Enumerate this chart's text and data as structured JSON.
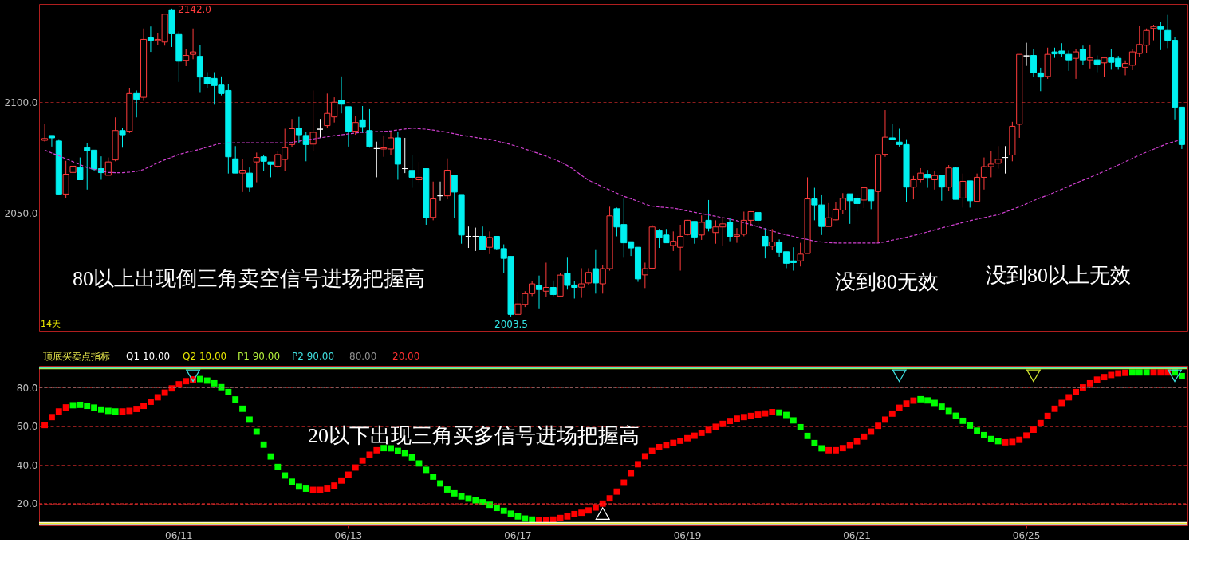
{
  "chart_data": [
    {
      "type": "candlestick",
      "tick_labels": "y",
      "grid": "y",
      "ohlc": [
        [
          2082.9,
          2090.1,
          2082.3,
          2083.7
        ],
        [
          2085.1,
          2085.1,
          2080.1,
          2084.0
        ],
        [
          2082.6,
          2083.4,
          2058.8,
          2058.8
        ],
        [
          2058.8,
          2073.7,
          2056.9,
          2067.7
        ],
        [
          2068.5,
          2073.2,
          2063.0,
          2071.3
        ],
        [
          2070.7,
          2075.2,
          2065.2,
          2065.2
        ],
        [
          2079.6,
          2081.8,
          2060.8,
          2078.1
        ],
        [
          2078.5,
          2078.5,
          2069.1,
          2070.0
        ],
        [
          2070.2,
          2075.7,
          2065.2,
          2068.4
        ],
        [
          2067.2,
          2075.2,
          2067.2,
          2073.2
        ],
        [
          2074.1,
          2093.2,
          2073.5,
          2087.3
        ],
        [
          2087.3,
          2088.4,
          2079.6,
          2085.4
        ],
        [
          2087.0,
          2106.3,
          2086.2,
          2103.9
        ],
        [
          2103.9,
          2105.3,
          2093.2,
          2101.3
        ],
        [
          2102.2,
          2133.1,
          2100.6,
          2128.2
        ],
        [
          2128.9,
          2134.0,
          2122.6,
          2127.8
        ],
        [
          2127.7,
          2131.1,
          2125.6,
          2128.2
        ],
        [
          2127.0,
          2139.5,
          2125.4,
          2139.5
        ],
        [
          2141.5,
          2142.0,
          2124.8,
          2130.7
        ],
        [
          2130.4,
          2131.8,
          2109.1,
          2118.4
        ],
        [
          2118.8,
          2124.0,
          2116.2,
          2121.0
        ],
        [
          2121.5,
          2133.1,
          2119.3,
          2122.6
        ],
        [
          2120.6,
          2125.6,
          2104.2,
          2111.3
        ],
        [
          2111.3,
          2113.5,
          2106.3,
          2108.2
        ],
        [
          2110.7,
          2113.5,
          2098.9,
          2107.5
        ],
        [
          2107.7,
          2111.6,
          2103.1,
          2103.9
        ],
        [
          2105.3,
          2108.3,
          2068.0,
          2075.5
        ],
        [
          2074.6,
          2080.3,
          2068.2,
          2068.2
        ],
        [
          2068.2,
          2074.6,
          2059.7,
          2069.5
        ],
        [
          2068.2,
          2070.7,
          2059.7,
          2061.8
        ],
        [
          2073.2,
          2077.4,
          2064.1,
          2075.2
        ],
        [
          2075.5,
          2076.5,
          2069.1,
          2073.5
        ],
        [
          2073.2,
          2073.2,
          2066.3,
          2072.1
        ],
        [
          2071.3,
          2077.9,
          2070.4,
          2076.5
        ],
        [
          2074.3,
          2088.1,
          2069.1,
          2079.6
        ],
        [
          2081.0,
          2092.5,
          2079.9,
          2088.1
        ],
        [
          2088.4,
          2093.4,
          2081.8,
          2085.4
        ],
        [
          2085.1,
          2086.8,
          2073.5,
          2081.0
        ],
        [
          2081.2,
          2105.3,
          2078.1,
          2086.5
        ],
        [
          2087.9,
          2092.5,
          2084.0,
          2087.9
        ],
        [
          2089.5,
          2103.9,
          2088.4,
          2095.0
        ],
        [
          2093.4,
          2102.2,
          2090.9,
          2100.0
        ],
        [
          2100.9,
          2111.6,
          2095.0,
          2099.1
        ],
        [
          2098.0,
          2098.0,
          2080.1,
          2087.0
        ],
        [
          2087.0,
          2093.9,
          2085.4,
          2090.9
        ],
        [
          2092.1,
          2098.3,
          2086.2,
          2089.0
        ],
        [
          2087.3,
          2096.9,
          2079.6,
          2080.1
        ],
        [
          2079.2,
          2082.3,
          2066.3,
          2079.2
        ],
        [
          2079.0,
          2085.1,
          2075.5,
          2079.5
        ],
        [
          2079.0,
          2087.0,
          2076.3,
          2084.0
        ],
        [
          2084.0,
          2086.5,
          2065.2,
          2072.2
        ],
        [
          2070.2,
          2084.0,
          2068.2,
          2070.2
        ],
        [
          2069.4,
          2076.3,
          2061.6,
          2066.3
        ],
        [
          2065.2,
          2073.2,
          2063.6,
          2066.3
        ],
        [
          2070.2,
          2070.2,
          2045.0,
          2048.1
        ],
        [
          2048.3,
          2064.4,
          2047.0,
          2056.6
        ],
        [
          2058.0,
          2064.4,
          2055.8,
          2058.0
        ],
        [
          2058.0,
          2074.8,
          2056.4,
          2069.5
        ],
        [
          2067.2,
          2067.2,
          2048.1,
          2059.7
        ],
        [
          2058.6,
          2058.6,
          2036.5,
          2040.4
        ],
        [
          2039.8,
          2044.2,
          2034.6,
          2039.8
        ],
        [
          2039.8,
          2043.7,
          2033.2,
          2039.8
        ],
        [
          2039.8,
          2044.2,
          2033.8,
          2033.8
        ],
        [
          2034.9,
          2042.0,
          2031.8,
          2039.3
        ],
        [
          2039.8,
          2039.8,
          2033.8,
          2034.3
        ],
        [
          2034.3,
          2036.2,
          2023.3,
          2029.9
        ],
        [
          2030.8,
          2030.8,
          2003.5,
          2004.8
        ],
        [
          2004.8,
          2015.0,
          2004.8,
          2009.5
        ],
        [
          2009.3,
          2015.2,
          2008.1,
          2014.1
        ],
        [
          2014.1,
          2019.6,
          2013.0,
          2018.5
        ],
        [
          2017.8,
          2022.2,
          2007.5,
          2015.9
        ],
        [
          2015.2,
          2028.0,
          2012.8,
          2016.9
        ],
        [
          2016.9,
          2020.0,
          2013.0,
          2013.7
        ],
        [
          2013.0,
          2023.3,
          2013.0,
          2022.4
        ],
        [
          2023.3,
          2030.2,
          2015.9,
          2017.8
        ],
        [
          2018.0,
          2019.6,
          2011.9,
          2016.9
        ],
        [
          2017.0,
          2025.5,
          2012.2,
          2018.5
        ],
        [
          2018.9,
          2025.5,
          2017.8,
          2023.6
        ],
        [
          2025.3,
          2034.0,
          2014.1,
          2018.9
        ],
        [
          2018.5,
          2027.1,
          2014.1,
          2025.3
        ],
        [
          2025.3,
          2053.1,
          2024.4,
          2049.0
        ],
        [
          2052.2,
          2052.7,
          2039.8,
          2044.0
        ],
        [
          2045.1,
          2056.7,
          2030.2,
          2036.9
        ],
        [
          2037.4,
          2037.4,
          2031.0,
          2034.6
        ],
        [
          2034.9,
          2034.9,
          2019.4,
          2020.7
        ],
        [
          2022.5,
          2028.0,
          2016.6,
          2025.3
        ],
        [
          2025.5,
          2045.0,
          2025.5,
          2044.0
        ],
        [
          2042.4,
          2043.1,
          2034.6,
          2039.3
        ],
        [
          2040.4,
          2043.1,
          2036.9,
          2036.9
        ],
        [
          2035.7,
          2042.0,
          2033.2,
          2037.6
        ],
        [
          2034.9,
          2045.0,
          2024.4,
          2039.8
        ],
        [
          2040.6,
          2047.2,
          2040.2,
          2047.0
        ],
        [
          2046.5,
          2046.5,
          2036.5,
          2039.5
        ],
        [
          2040.4,
          2049.2,
          2038.2,
          2046.1
        ],
        [
          2047.0,
          2056.1,
          2042.0,
          2043.5
        ],
        [
          2041.5,
          2047.0,
          2036.5,
          2044.0
        ],
        [
          2044.0,
          2048.3,
          2035.7,
          2045.4
        ],
        [
          2046.1,
          2048.1,
          2037.6,
          2039.8
        ],
        [
          2039.8,
          2043.5,
          2036.9,
          2040.4
        ],
        [
          2040.7,
          2050.9,
          2039.8,
          2047.0
        ],
        [
          2047.0,
          2051.1,
          2044.6,
          2050.9
        ],
        [
          2050.5,
          2050.5,
          2044.8,
          2047.0
        ],
        [
          2039.8,
          2043.5,
          2029.9,
          2035.4
        ],
        [
          2035.4,
          2043.1,
          2033.8,
          2037.3
        ],
        [
          2037.3,
          2038.4,
          2030.7,
          2032.7
        ],
        [
          2032.9,
          2032.9,
          2025.5,
          2027.7
        ],
        [
          2028.8,
          2034.9,
          2024.4,
          2028.0
        ],
        [
          2028.8,
          2036.9,
          2026.3,
          2031.8
        ],
        [
          2032.1,
          2066.3,
          2032.1,
          2056.6
        ],
        [
          2056.6,
          2061.6,
          2047.0,
          2053.9
        ],
        [
          2053.9,
          2058.6,
          2040.4,
          2044.2
        ],
        [
          2044.2,
          2054.7,
          2044.2,
          2048.1
        ],
        [
          2047.2,
          2055.0,
          2047.0,
          2052.0
        ],
        [
          2051.6,
          2059.2,
          2049.8,
          2056.9
        ],
        [
          2058.9,
          2058.9,
          2045.4,
          2055.8
        ],
        [
          2056.9,
          2058.6,
          2050.9,
          2054.5
        ],
        [
          2056.1,
          2061.6,
          2052.5,
          2061.6
        ],
        [
          2060.8,
          2060.8,
          2052.0,
          2055.8
        ],
        [
          2059.9,
          2076.5,
          2036.8,
          2076.5
        ],
        [
          2076.6,
          2096.5,
          2075.5,
          2084.3
        ],
        [
          2084.0,
          2090.1,
          2083.1,
          2083.1
        ],
        [
          2082.1,
          2088.1,
          2080.1,
          2081.0
        ],
        [
          2081.0,
          2083.4,
          2055.0,
          2061.9
        ],
        [
          2061.9,
          2066.9,
          2056.4,
          2065.2
        ],
        [
          2065.2,
          2070.4,
          2064.1,
          2068.2
        ],
        [
          2067.7,
          2069.6,
          2061.6,
          2066.2
        ],
        [
          2065.2,
          2069.3,
          2060.8,
          2067.1
        ],
        [
          2067.2,
          2067.2,
          2055.8,
          2061.9
        ],
        [
          2061.9,
          2071.8,
          2060.3,
          2070.5
        ],
        [
          2070.5,
          2071.1,
          2056.4,
          2056.4
        ],
        [
          2057.0,
          2068.0,
          2052.7,
          2064.5
        ],
        [
          2064.7,
          2064.7,
          2052.7,
          2055.8
        ],
        [
          2055.5,
          2068.0,
          2055.0,
          2066.3
        ],
        [
          2066.3,
          2075.2,
          2060.8,
          2071.1
        ],
        [
          2071.1,
          2078.1,
          2066.3,
          2072.2
        ],
        [
          2072.6,
          2080.3,
          2070.2,
          2074.4
        ],
        [
          2075.2,
          2080.3,
          2068.0,
          2075.2
        ],
        [
          2076.3,
          2091.2,
          2073.5,
          2089.2
        ],
        [
          2090.1,
          2121.5,
          2084.0,
          2121.5
        ],
        [
          2120.8,
          2126.7,
          2116.3,
          2120.8
        ],
        [
          2121.0,
          2123.7,
          2111.3,
          2113.2
        ],
        [
          2113.2,
          2115.5,
          2105.0,
          2111.3
        ],
        [
          2111.6,
          2124.5,
          2110.5,
          2121.5
        ],
        [
          2122.6,
          2124.5,
          2119.9,
          2121.7
        ],
        [
          2123.0,
          2126.5,
          2120.4,
          2121.7
        ],
        [
          2121.5,
          2123.2,
          2114.1,
          2119.0
        ],
        [
          2119.7,
          2123.7,
          2110.5,
          2122.6
        ],
        [
          2123.7,
          2125.4,
          2116.6,
          2119.0
        ],
        [
          2119.0,
          2125.9,
          2115.2,
          2119.9
        ],
        [
          2119.0,
          2121.0,
          2113.5,
          2117.1
        ],
        [
          2117.7,
          2119.9,
          2111.3,
          2119.9
        ],
        [
          2119.9,
          2123.7,
          2114.6,
          2117.9
        ],
        [
          2119.7,
          2120.8,
          2114.6,
          2116.0
        ],
        [
          2115.7,
          2118.8,
          2112.1,
          2117.4
        ],
        [
          2116.6,
          2123.7,
          2114.4,
          2122.6
        ],
        [
          2121.9,
          2134.2,
          2120.4,
          2125.9
        ],
        [
          2125.6,
          2133.1,
          2122.1,
          2132.2
        ],
        [
          2133.1,
          2134.8,
          2127.8,
          2134.0
        ],
        [
          2134.0,
          2135.9,
          2123.4,
          2132.6
        ],
        [
          2132.2,
          2139.2,
          2124.3,
          2127.8
        ],
        [
          2127.8,
          2129.3,
          2092.3,
          2097.8
        ],
        [
          2097.8,
          2097.8,
          2079.0,
          2081.0
        ]
      ],
      "series": [
        {
          "type": "line",
          "color": "#d040d0",
          "line_style": "dashed",
          "values": [
            2078.5,
            2077.2,
            2076.0,
            2074.6,
            2073.3,
            2072.0,
            2070.7,
            2069.9,
            2069.2,
            2068.5,
            2068.4,
            2068.4,
            2068.6,
            2069.0,
            2069.8,
            2071.3,
            2072.9,
            2074.1,
            2075.3,
            2076.6,
            2077.4,
            2078.1,
            2078.9,
            2079.9,
            2080.8,
            2081.6,
            2081.7,
            2081.8,
            2081.8,
            2081.8,
            2081.8,
            2081.8,
            2081.8,
            2081.8,
            2081.7,
            2082.0,
            2082.5,
            2083.1,
            2083.5,
            2084.0,
            2084.5,
            2085.0,
            2085.4,
            2085.8,
            2086.2,
            2086.5,
            2086.6,
            2086.8,
            2086.9,
            2087.1,
            2087.6,
            2088.0,
            2088.4,
            2088.1,
            2087.9,
            2087.5,
            2087.0,
            2086.5,
            2085.9,
            2085.2,
            2084.7,
            2084.2,
            2083.7,
            2083.4,
            2082.6,
            2081.8,
            2081.0,
            2080.0,
            2079.0,
            2078.0,
            2076.9,
            2075.8,
            2074.6,
            2073.2,
            2071.6,
            2069.6,
            2067.2,
            2065.0,
            2063.5,
            2062.0,
            2060.6,
            2059.2,
            2057.8,
            2056.7,
            2055.5,
            2054.2,
            2053.4,
            2053.0,
            2052.7,
            2052.5,
            2051.9,
            2051.2,
            2050.6,
            2050.0,
            2049.4,
            2048.8,
            2048.2,
            2047.5,
            2046.8,
            2045.9,
            2045.1,
            2044.1,
            2043.1,
            2042.2,
            2041.3,
            2040.4,
            2039.8,
            2039.0,
            2038.4,
            2037.6,
            2037.3,
            2037.0,
            2036.8,
            2036.8,
            2036.8,
            2036.8,
            2036.8,
            2036.8,
            2036.8,
            2037.4,
            2038.1,
            2038.7,
            2039.4,
            2040.2,
            2040.9,
            2041.8,
            2042.7,
            2043.6,
            2044.4,
            2045.2,
            2046.0,
            2046.8,
            2047.5,
            2048.2,
            2048.9,
            2049.5,
            2050.7,
            2051.9,
            2053.1,
            2054.4,
            2055.8,
            2057.1,
            2058.3,
            2059.6,
            2060.9,
            2062.3,
            2063.7,
            2065.0,
            2066.3,
            2067.6,
            2069.0,
            2070.4,
            2071.8,
            2073.3,
            2074.8,
            2076.3,
            2077.6,
            2078.9,
            2080.2,
            2081.5,
            2082.4,
            2083.2
          ]
        }
      ],
      "ylim": [
        1997.4,
        2144.1
      ],
      "yticks": [
        {
          "value": 2050,
          "label": "2050.0"
        },
        {
          "value": 2100,
          "label": "2100.0"
        }
      ],
      "annotations": [
        "2142.0",
        "2003.5",
        "80以上出现倒三角卖空信号进场把握高",
        "没到80无效",
        "没到80以上无效",
        "14天"
      ]
    },
    {
      "type": "scatter",
      "grid": "y",
      "title": "顶底买卖点指标",
      "categories": [
        null,
        null,
        null,
        null,
        null,
        null,
        null,
        null,
        null,
        null,
        null,
        null,
        null,
        null,
        null,
        null,
        null,
        null,
        null,
        "06/11",
        null,
        null,
        null,
        null,
        null,
        null,
        null,
        null,
        null,
        null,
        null,
        null,
        null,
        null,
        null,
        null,
        null,
        null,
        null,
        null,
        null,
        null,
        null,
        "06/13",
        null,
        null,
        null,
        null,
        null,
        null,
        null,
        null,
        null,
        null,
        null,
        null,
        null,
        null,
        null,
        null,
        null,
        null,
        null,
        null,
        null,
        null,
        null,
        "06/17",
        null,
        null,
        null,
        null,
        null,
        null,
        null,
        null,
        null,
        null,
        null,
        null,
        null,
        null,
        null,
        null,
        null,
        null,
        null,
        null,
        null,
        null,
        null,
        "06/19",
        null,
        null,
        null,
        null,
        null,
        null,
        null,
        null,
        null,
        null,
        null,
        null,
        null,
        null,
        null,
        null,
        null,
        null,
        null,
        null,
        null,
        null,
        null,
        "06/21",
        null,
        null,
        null,
        null,
        null,
        null,
        null,
        null,
        null,
        null,
        null,
        null,
        null,
        null,
        null,
        null,
        null,
        null,
        null,
        null,
        null,
        null,
        null,
        "06/25",
        null,
        null,
        null,
        null,
        null,
        null,
        null,
        null,
        null,
        null,
        null,
        null,
        null,
        null,
        null,
        null,
        null,
        null,
        null,
        null,
        null,
        null
      ],
      "series": [
        {
          "marker": "square",
          "values": [
            60.6,
            64.7,
            67.6,
            69.7,
            70.8,
            71.0,
            70.5,
            69.6,
            68.6,
            67.9,
            67.6,
            67.6,
            67.9,
            68.9,
            70.5,
            72.6,
            74.9,
            77.3,
            79.5,
            81.6,
            83.2,
            84.1,
            84.3,
            83.5,
            82.1,
            80.1,
            77.6,
            73.8,
            69.0,
            63.4,
            57.2,
            50.5,
            44.4,
            39.0,
            34.6,
            31.4,
            28.9,
            27.8,
            27.2,
            27.2,
            27.8,
            29.4,
            32.0,
            35.0,
            38.7,
            42.3,
            45.3,
            47.6,
            48.7,
            48.6,
            47.3,
            46.1,
            43.9,
            40.8,
            37.5,
            34.0,
            30.5,
            27.4,
            25.4,
            23.8,
            22.7,
            21.8,
            20.8,
            19.5,
            17.9,
            16.4,
            14.9,
            13.5,
            12.4,
            11.9,
            11.6,
            11.6,
            11.9,
            12.7,
            13.5,
            14.7,
            15.4,
            16.6,
            18.1,
            20.1,
            22.8,
            26.3,
            30.9,
            35.8,
            40.4,
            44.5,
            47.3,
            49.2,
            50.3,
            51.4,
            52.5,
            53.8,
            55.1,
            56.6,
            58.1,
            59.7,
            61.2,
            62.7,
            63.9,
            64.7,
            65.3,
            66.0,
            66.6,
            67.3,
            67.0,
            65.8,
            63.0,
            59.5,
            55.0,
            51.3,
            48.6,
            47.6,
            47.6,
            48.7,
            50.2,
            52.2,
            54.6,
            57.2,
            60.2,
            63.4,
            66.5,
            69.5,
            71.7,
            73.2,
            73.9,
            73.3,
            72.0,
            70.1,
            67.9,
            65.4,
            62.8,
            60.3,
            57.7,
            55.4,
            53.4,
            52.3,
            51.7,
            51.9,
            53.0,
            55.2,
            58.2,
            61.6,
            65.3,
            69.0,
            72.0,
            74.9,
            77.6,
            80.0,
            82.1,
            84.0,
            85.3,
            86.4,
            87.2,
            87.5,
            87.7,
            87.7,
            87.7,
            87.7,
            87.7,
            87.7,
            87.7,
            85.8
          ],
          "colors": [
            "#ff0000",
            "#ff0000",
            "#ff0000",
            "#ff0000",
            "#00ff00",
            "#00ff00",
            "#00ff00",
            "#00ff00",
            "#00ff00",
            "#00ff00",
            "#00ff00",
            "#ff0000",
            "#ff0000",
            "#ff0000",
            "#ff0000",
            "#ff0000",
            "#ff0000",
            "#ff0000",
            "#ff0000",
            "#ff0000",
            "#ff0000",
            "#ff0000",
            "#00ff00",
            "#00ff00",
            "#00ff00",
            "#00ff00",
            "#00ff00",
            "#00ff00",
            "#00ff00",
            "#00ff00",
            "#00ff00",
            "#00ff00",
            "#00ff00",
            "#00ff00",
            "#00ff00",
            "#00ff00",
            "#00ff00",
            "#00ff00",
            "#ff0000",
            "#ff0000",
            "#ff0000",
            "#ff0000",
            "#ff0000",
            "#ff0000",
            "#ff0000",
            "#ff0000",
            "#ff0000",
            "#ff0000",
            "#00ff00",
            "#00ff00",
            "#00ff00",
            "#00ff00",
            "#00ff00",
            "#00ff00",
            "#00ff00",
            "#00ff00",
            "#00ff00",
            "#00ff00",
            "#00ff00",
            "#00ff00",
            "#00ff00",
            "#00ff00",
            "#00ff00",
            "#00ff00",
            "#00ff00",
            "#00ff00",
            "#00ff00",
            "#00ff00",
            "#00ff00",
            "#00ff00",
            "#ff0000",
            "#ff0000",
            "#ff0000",
            "#ff0000",
            "#ff0000",
            "#ff0000",
            "#ff0000",
            "#ff0000",
            "#ff0000",
            "#ff0000",
            "#ff0000",
            "#ff0000",
            "#ff0000",
            "#ff0000",
            "#ff0000",
            "#ff0000",
            "#ff0000",
            "#ff0000",
            "#ff0000",
            "#ff0000",
            "#ff0000",
            "#ff0000",
            "#ff0000",
            "#ff0000",
            "#ff0000",
            "#ff0000",
            "#ff0000",
            "#ff0000",
            "#ff0000",
            "#ff0000",
            "#ff0000",
            "#ff0000",
            "#ff0000",
            "#ff0000",
            "#00ff00",
            "#00ff00",
            "#00ff00",
            "#00ff00",
            "#00ff00",
            "#00ff00",
            "#00ff00",
            "#ff0000",
            "#ff0000",
            "#ff0000",
            "#ff0000",
            "#ff0000",
            "#ff0000",
            "#ff0000",
            "#ff0000",
            "#ff0000",
            "#ff0000",
            "#ff0000",
            "#ff0000",
            "#ff0000",
            "#00ff00",
            "#00ff00",
            "#00ff00",
            "#00ff00",
            "#00ff00",
            "#00ff00",
            "#00ff00",
            "#00ff00",
            "#00ff00",
            "#00ff00",
            "#00ff00",
            "#00ff00",
            "#ff0000",
            "#ff0000",
            "#ff0000",
            "#ff0000",
            "#ff0000",
            "#ff0000",
            "#ff0000",
            "#ff0000",
            "#ff0000",
            "#ff0000",
            "#ff0000",
            "#ff0000",
            "#ff0000",
            "#ff0000",
            "#ff0000",
            "#ff0000",
            "#ff0000",
            "#ff0000",
            "#00ff00",
            "#00ff00",
            "#00ff00",
            "#ff0000",
            "#ff0000",
            "#ff0000",
            "#00ff00",
            "#00ff00"
          ]
        },
        {
          "marker": "triangle-down",
          "color": "#40e0e0",
          "values": [
            null,
            null,
            null,
            null,
            null,
            null,
            null,
            null,
            null,
            null,
            null,
            null,
            null,
            null,
            null,
            null,
            null,
            null,
            null,
            null,
            null,
            86,
            null,
            null,
            null,
            null,
            null,
            null,
            null,
            null,
            null,
            null,
            null,
            null,
            null,
            null,
            null,
            null,
            null,
            null,
            null,
            null,
            null,
            null,
            null,
            null,
            null,
            null,
            null,
            null,
            null,
            null,
            null,
            null,
            null,
            null,
            null,
            null,
            null,
            null,
            null,
            null,
            null,
            null,
            null,
            null,
            null,
            null,
            null,
            null,
            null,
            null,
            null,
            null,
            null,
            null,
            null,
            null,
            null,
            null,
            null,
            null,
            null,
            null,
            null,
            null,
            null,
            null,
            null,
            null,
            null,
            null,
            null,
            null,
            null,
            null,
            null,
            null,
            null,
            null,
            null,
            null,
            null,
            null,
            null,
            null,
            null,
            null,
            null,
            null,
            null,
            null,
            null,
            null,
            null,
            null,
            null,
            null,
            null,
            null,
            null,
            86,
            null,
            null,
            null,
            null,
            null,
            null,
            null,
            null,
            null,
            null,
            null,
            null,
            null,
            null,
            null,
            null,
            null,
            null,
            null,
            null,
            null,
            null,
            null,
            null,
            null,
            null,
            null,
            null,
            null,
            null,
            null,
            null,
            null,
            null,
            null,
            null,
            null,
            null,
            86,
            null
          ]
        },
        {
          "marker": "triangle-down",
          "color": "#d2e632",
          "values": [
            null,
            null,
            null,
            null,
            null,
            null,
            null,
            null,
            null,
            null,
            null,
            null,
            null,
            null,
            null,
            null,
            null,
            null,
            null,
            null,
            null,
            null,
            null,
            null,
            null,
            null,
            null,
            null,
            null,
            null,
            null,
            null,
            null,
            null,
            null,
            null,
            null,
            null,
            null,
            null,
            null,
            null,
            null,
            null,
            null,
            null,
            null,
            null,
            null,
            null,
            null,
            null,
            null,
            null,
            null,
            null,
            null,
            null,
            null,
            null,
            null,
            null,
            null,
            null,
            null,
            null,
            null,
            null,
            null,
            null,
            null,
            null,
            null,
            null,
            null,
            null,
            null,
            null,
            null,
            null,
            null,
            null,
            null,
            null,
            null,
            null,
            null,
            null,
            null,
            null,
            null,
            null,
            null,
            null,
            null,
            null,
            null,
            null,
            null,
            null,
            null,
            null,
            null,
            null,
            null,
            null,
            null,
            null,
            null,
            null,
            null,
            null,
            null,
            null,
            null,
            null,
            null,
            null,
            null,
            null,
            null,
            null,
            null,
            null,
            null,
            null,
            null,
            null,
            null,
            null,
            null,
            null,
            null,
            null,
            null,
            null,
            null,
            null,
            null,
            null,
            86,
            null,
            null,
            null,
            null,
            null,
            null,
            null,
            null,
            null,
            null,
            null,
            null,
            null,
            null,
            null,
            null,
            null,
            null,
            null,
            null,
            null
          ]
        },
        {
          "marker": "triangle",
          "color": "#ffffff",
          "values": [
            null,
            null,
            null,
            null,
            null,
            null,
            null,
            null,
            null,
            null,
            null,
            null,
            null,
            null,
            null,
            null,
            null,
            null,
            null,
            null,
            null,
            null,
            null,
            null,
            null,
            null,
            null,
            null,
            null,
            null,
            null,
            null,
            null,
            null,
            null,
            null,
            null,
            null,
            null,
            null,
            null,
            null,
            null,
            null,
            null,
            null,
            null,
            null,
            null,
            null,
            null,
            null,
            null,
            null,
            null,
            null,
            null,
            null,
            null,
            null,
            null,
            null,
            null,
            null,
            null,
            null,
            null,
            null,
            null,
            null,
            null,
            null,
            null,
            null,
            null,
            null,
            null,
            null,
            null,
            15,
            null,
            null,
            null,
            null,
            null,
            null,
            null,
            null,
            null,
            null,
            null,
            null,
            null,
            null,
            null,
            null,
            null,
            null,
            null,
            null,
            null,
            null,
            null,
            null,
            null,
            null,
            null,
            null,
            null,
            null,
            null,
            null,
            null,
            null,
            null,
            null,
            null,
            null,
            null,
            null,
            null,
            null,
            null,
            null,
            null,
            null,
            null,
            null,
            null,
            null,
            null,
            null,
            null,
            null,
            null,
            null,
            null,
            null,
            null,
            null,
            null,
            null,
            null,
            null,
            null,
            null,
            null,
            null,
            null,
            null,
            null,
            null,
            null,
            null,
            null,
            null,
            null,
            null,
            null,
            null,
            null,
            null
          ]
        }
      ],
      "ylim": [
        8.9,
        91.1
      ],
      "yticks": [
        {
          "value": 20,
          "label": "20.0"
        },
        {
          "value": 40,
          "label": "40.0"
        },
        {
          "value": 60,
          "label": "60.0"
        },
        {
          "value": 80,
          "label": "80.0"
        }
      ],
      "ref_lines": [
        {
          "axis": "y",
          "value": 10,
          "label": "Q1 10.00",
          "color": "#ffffff"
        },
        {
          "axis": "y",
          "value": 10,
          "label": "Q2 10.00",
          "color": "#e6e600"
        },
        {
          "axis": "y",
          "value": 90,
          "label": "P1 90.00",
          "color": "#b4f03c"
        },
        {
          "axis": "y",
          "value": 90,
          "label": "P2 90.00",
          "color": "#40e0e0"
        },
        {
          "axis": "y",
          "value": 80,
          "label": "80.00",
          "color": "#909090",
          "line_style": "dashed"
        },
        {
          "axis": "y",
          "value": 20,
          "label": "20.00",
          "color": "#ff3030",
          "line_style": "dashed"
        }
      ],
      "annotations": [
        "20以下出现三角买多信号进场把握高"
      ]
    }
  ]
}
